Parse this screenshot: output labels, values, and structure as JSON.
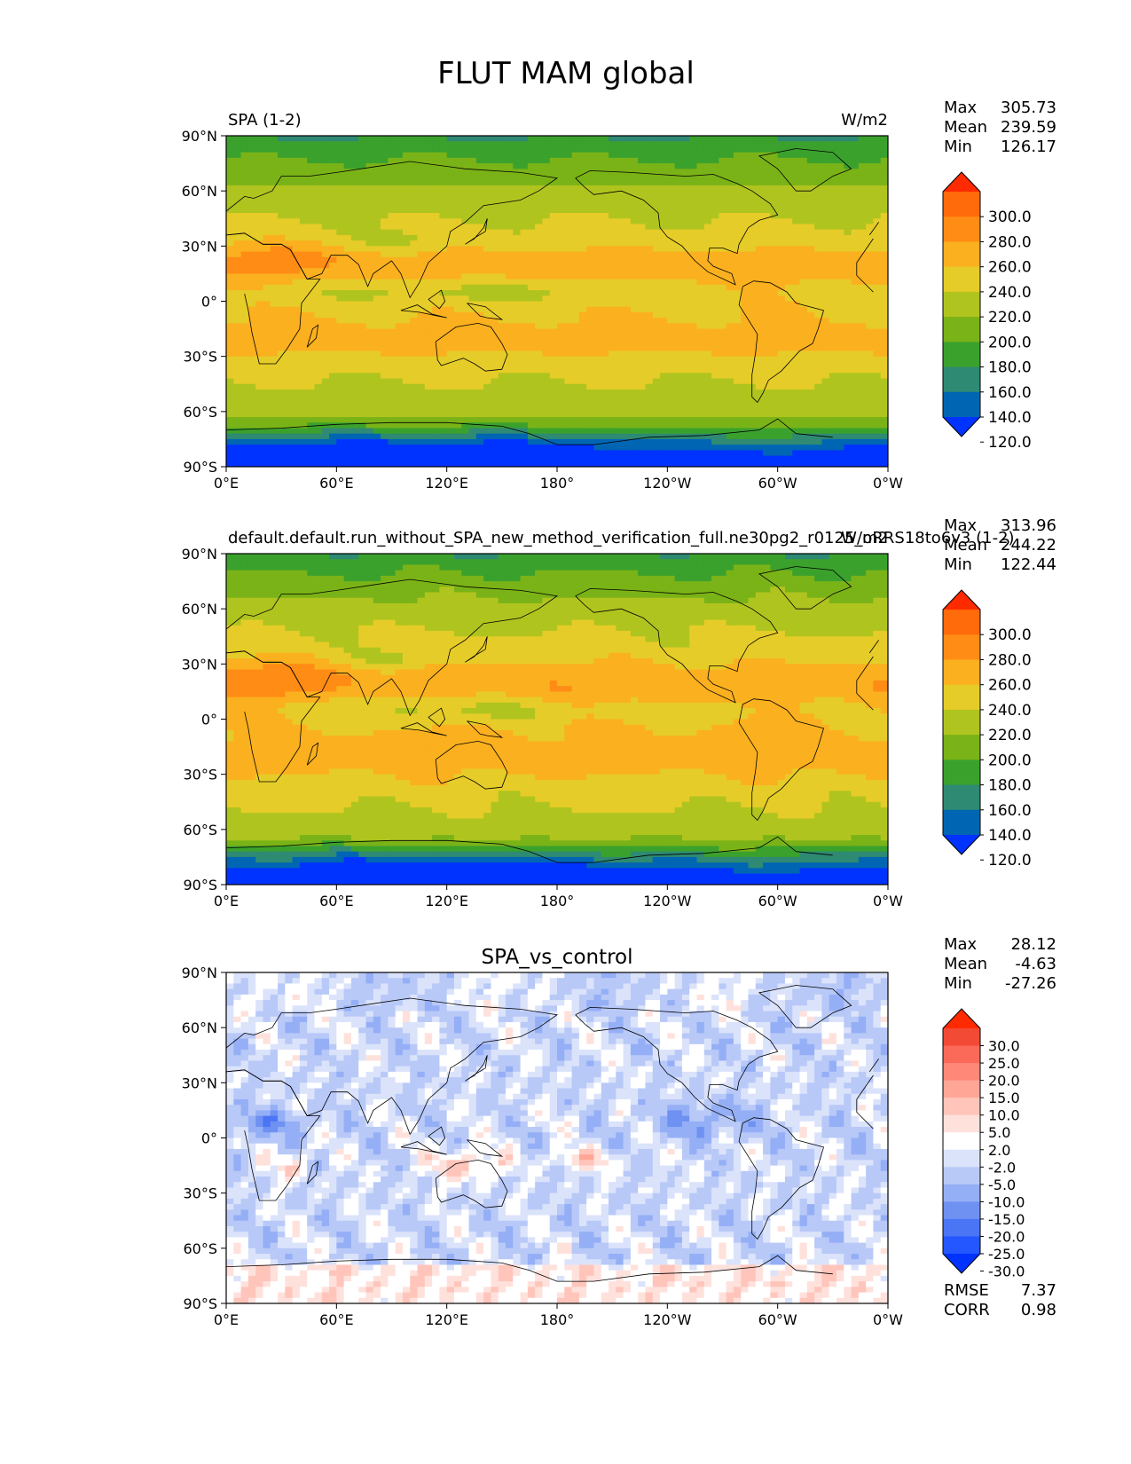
{
  "figure": {
    "title": "FLUT MAM global"
  },
  "lon_ticks": [
    "0°E",
    "60°E",
    "120°E",
    "180°",
    "120°W",
    "60°W",
    "0°W"
  ],
  "lat_ticks": [
    "90°N",
    "60°N",
    "30°N",
    "0°",
    "30°S",
    "60°S",
    "90°S"
  ],
  "colors": {
    "abs": [
      "#0033ff",
      "#0066b3",
      "#2e8a73",
      "#3ba12d",
      "#7ab317",
      "#b0c41f",
      "#e6cc28",
      "#fbb01f",
      "#ff8c14",
      "#ff6a0a",
      "#ff2a00"
    ],
    "diff": [
      "#0033ff",
      "#2457ff",
      "#4a75f5",
      "#6e91f2",
      "#95aff6",
      "#b8c9f8",
      "#dbe3fb",
      "#ffffff",
      "#ffe1dc",
      "#ffc5bb",
      "#ffa697",
      "#ff8878",
      "#fb6a58",
      "#f24a35",
      "#ff2a00"
    ]
  },
  "chart_data": [
    {
      "type": "heatmap",
      "title": "SPA (1-2)",
      "units": "W/m2",
      "stats": {
        "max_label": "Max",
        "max": "305.73",
        "mean_label": "Mean",
        "mean": "239.59",
        "min_label": "Min",
        "min": "126.17"
      },
      "colorbar_ticks": [
        "300.0",
        "280.0",
        "260.0",
        "240.0",
        "220.0",
        "200.0",
        "180.0",
        "160.0",
        "140.0",
        "120.0"
      ],
      "levels": [
        110,
        120,
        140,
        160,
        180,
        200,
        220,
        240,
        260,
        280,
        300,
        320
      ],
      "xlim": [
        0,
        360
      ],
      "ylim": [
        -90,
        90
      ]
    },
    {
      "type": "heatmap",
      "title": "default.default.run_without_SPA_new_method_verification_full.ne30pg2_r0125_oRRS18to6v3 (1-2)",
      "units": "W/m2",
      "stats": {
        "max_label": "Max",
        "max": "313.96",
        "mean_label": "Mean",
        "mean": "244.22",
        "min_label": "Min",
        "min": "122.44"
      },
      "colorbar_ticks": [
        "300.0",
        "280.0",
        "260.0",
        "240.0",
        "220.0",
        "200.0",
        "180.0",
        "160.0",
        "140.0",
        "120.0"
      ],
      "levels": [
        110,
        120,
        140,
        160,
        180,
        200,
        220,
        240,
        260,
        280,
        300,
        320
      ],
      "xlim": [
        0,
        360
      ],
      "ylim": [
        -90,
        90
      ]
    },
    {
      "type": "heatmap",
      "title": "SPA_vs_control",
      "stats": {
        "max_label": "Max",
        "max": "28.12",
        "mean_label": "Mean",
        "mean": "-4.63",
        "min_label": "Min",
        "min": "-27.26"
      },
      "colorbar_ticks": [
        "30.0",
        "25.0",
        "20.0",
        "15.0",
        "10.0",
        "5.0",
        "2.0",
        "-2.0",
        "-5.0",
        "-10.0",
        "-15.0",
        "-20.0",
        "-25.0",
        "-30.0"
      ],
      "levels": [
        -35,
        -30,
        -25,
        -20,
        -15,
        -10,
        -5,
        -2,
        2,
        5,
        10,
        15,
        20,
        25,
        30,
        35
      ],
      "rmse_label": "RMSE",
      "rmse": "7.37",
      "corr_label": "CORR",
      "corr": "0.98",
      "xlim": [
        0,
        360
      ],
      "ylim": [
        -90,
        90
      ]
    }
  ]
}
